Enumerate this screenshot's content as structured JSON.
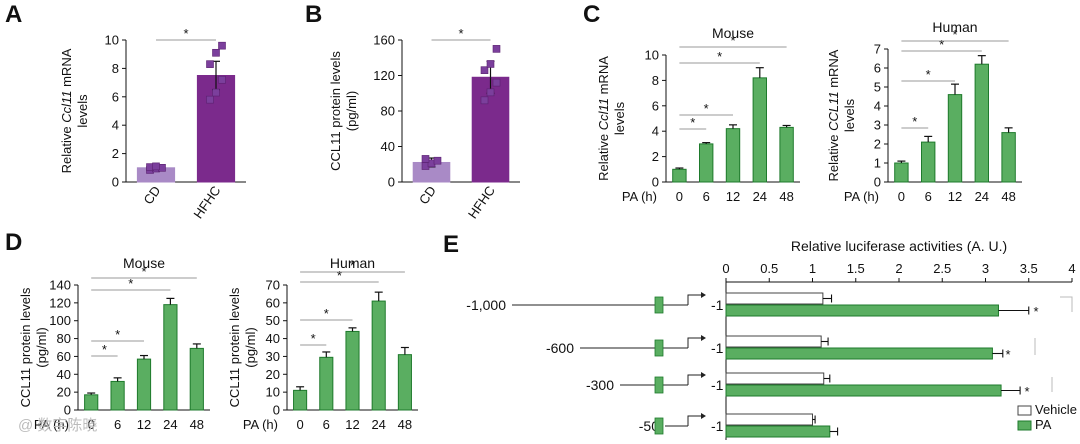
{
  "colors": {
    "green": "#5aae61",
    "green_dark": "#1e7a2c",
    "purple": "#7b2a8c",
    "purple_light": "#a98ac6",
    "purple_marker": "#7b3f9c",
    "axis": "#111111",
    "sig_line": "#999999"
  },
  "watermark": "@ 数字陈晓",
  "chart_data": [
    {
      "panel": "A",
      "type": "bar",
      "ylabel_parts": [
        "Relative ",
        "Ccl11",
        " mRNA"
      ],
      "ylabel_line2": "levels",
      "categories": [
        "CD",
        "HFHC"
      ],
      "values": [
        1.0,
        7.5
      ],
      "errors": [
        0.2,
        1.0
      ],
      "points": [
        [
          0.85,
          0.95,
          1.0,
          1.05,
          1.1
        ],
        [
          5.8,
          6.3,
          7.2,
          8.3,
          9.1,
          9.6
        ]
      ],
      "ylim": [
        0,
        10
      ],
      "yticks": [
        0,
        2,
        4,
        6,
        8,
        10
      ],
      "significance": [
        {
          "from": 0,
          "to": 1,
          "label": "*"
        }
      ]
    },
    {
      "panel": "B",
      "type": "bar",
      "ylabel_line1": "CCL11 protein levels",
      "ylabel_line2": "(pg/ml)",
      "categories": [
        "CD",
        "HFHC"
      ],
      "values": [
        22,
        118
      ],
      "errors": [
        5,
        18
      ],
      "points": [
        [
          18,
          21,
          24,
          26
        ],
        [
          92,
          101,
          112,
          126,
          133,
          150
        ]
      ],
      "ylim": [
        0,
        160
      ],
      "yticks": [
        0,
        40,
        80,
        120,
        160
      ],
      "significance": [
        {
          "from": 0,
          "to": 1,
          "label": "*"
        }
      ]
    },
    {
      "panel": "C",
      "type": "bar",
      "title": "Mouse",
      "ylabel_parts": [
        "Relative ",
        "Ccl11",
        " mRNA"
      ],
      "ylabel_line2": "levels",
      "xlabel": "PA (h)",
      "categories": [
        "0",
        "6",
        "12",
        "24",
        "48"
      ],
      "values": [
        1.0,
        3.0,
        4.2,
        8.2,
        4.3
      ],
      "errors": [
        0.1,
        0.1,
        0.3,
        0.8,
        0.15
      ],
      "ylim": [
        0,
        10
      ],
      "yticks": [
        0,
        2,
        4,
        6,
        8,
        10
      ],
      "significance": [
        {
          "from": 0,
          "to": 1,
          "label": "*"
        },
        {
          "from": 0,
          "to": 2,
          "label": "*"
        },
        {
          "from": 0,
          "to": 3,
          "label": "*"
        },
        {
          "from": 0,
          "to": 4,
          "label": "*"
        }
      ]
    },
    {
      "panel": "C",
      "type": "bar",
      "title": "Human",
      "ylabel_parts": [
        "Relative ",
        "CCL11",
        " mRNA"
      ],
      "ylabel_line2": "levels",
      "xlabel": "PA (h)",
      "categories": [
        "0",
        "6",
        "12",
        "24",
        "48"
      ],
      "values": [
        1.0,
        2.1,
        4.6,
        6.2,
        2.6
      ],
      "errors": [
        0.1,
        0.3,
        0.55,
        0.45,
        0.25
      ],
      "ylim": [
        0,
        7
      ],
      "yticks": [
        0,
        1,
        2,
        3,
        4,
        5,
        6,
        7
      ],
      "significance": [
        {
          "from": 0,
          "to": 1,
          "label": "*"
        },
        {
          "from": 0,
          "to": 2,
          "label": "*"
        },
        {
          "from": 0,
          "to": 3,
          "label": "*"
        },
        {
          "from": 0,
          "to": 4,
          "label": "*"
        }
      ]
    },
    {
      "panel": "D",
      "type": "bar",
      "title": "Mouse",
      "ylabel_line1": "CCL11 protein levels",
      "ylabel_line2": "(pg/ml)",
      "xlabel": "PA (h)",
      "categories": [
        "0",
        "6",
        "12",
        "24",
        "48"
      ],
      "values": [
        17,
        32,
        57,
        118,
        69
      ],
      "errors": [
        2,
        4,
        4,
        7,
        5
      ],
      "ylim": [
        0,
        140
      ],
      "yticks": [
        0,
        20,
        40,
        60,
        80,
        100,
        120,
        140
      ],
      "significance": [
        {
          "from": 0,
          "to": 1,
          "label": "*"
        },
        {
          "from": 0,
          "to": 2,
          "label": "*"
        },
        {
          "from": 0,
          "to": 3,
          "label": "*"
        },
        {
          "from": 0,
          "to": 4,
          "label": "*"
        }
      ]
    },
    {
      "panel": "D",
      "type": "bar",
      "title": "Human",
      "ylabel_line1": "CCL11 protein levels",
      "ylabel_line2": "(pg/ml)",
      "xlabel": "PA (h)",
      "categories": [
        "0",
        "6",
        "12",
        "24",
        "48"
      ],
      "values": [
        11,
        29.5,
        44,
        61,
        31
      ],
      "errors": [
        2,
        3,
        2,
        5,
        4
      ],
      "ylim": [
        0,
        70
      ],
      "yticks": [
        0,
        10,
        20,
        30,
        40,
        50,
        60,
        70
      ],
      "significance": [
        {
          "from": 0,
          "to": 1,
          "label": "*"
        },
        {
          "from": 0,
          "to": 2,
          "label": "*"
        },
        {
          "from": 0,
          "to": 3,
          "label": "*"
        },
        {
          "from": 0,
          "to": 4,
          "label": "*"
        }
      ]
    },
    {
      "panel": "E",
      "type": "bar",
      "orientation": "horizontal",
      "title": "Relative luciferase activities (A. U.)",
      "xlim": [
        0,
        4
      ],
      "xticks": [
        0,
        0.5,
        1,
        1.5,
        2,
        2.5,
        3,
        3.5,
        4
      ],
      "constructs": [
        "-1,000",
        "-600",
        "-300",
        "-50"
      ],
      "construct_end": "-1",
      "series": [
        {
          "name": "Vehicle",
          "values": [
            1.12,
            1.1,
            1.13,
            1.0
          ],
          "errors": [
            0.1,
            0.08,
            0.07,
            0.03
          ]
        },
        {
          "name": "PA",
          "values": [
            3.15,
            3.08,
            3.18,
            1.2
          ],
          "errors": [
            0.35,
            0.12,
            0.22,
            0.09
          ]
        }
      ],
      "significance": [
        {
          "row": 0,
          "label": "*"
        },
        {
          "row": 1,
          "label": "*"
        },
        {
          "row": 2,
          "label": "*"
        }
      ],
      "legend": [
        "Vehicle",
        "PA"
      ],
      "legend_position": "bottom-right"
    }
  ]
}
